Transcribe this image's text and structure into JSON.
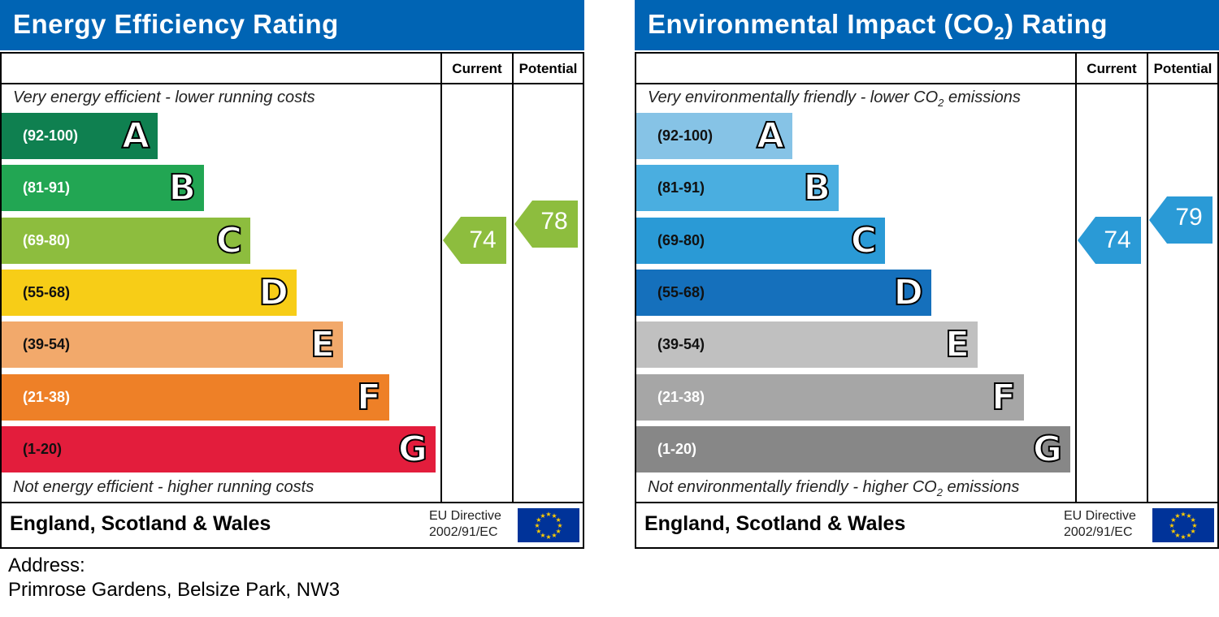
{
  "chart_data": [
    {
      "type": "bar",
      "title": "Energy Efficiency Rating",
      "columns": [
        "Current",
        "Potential"
      ],
      "top_caption": "Very energy efficient - lower running costs",
      "bottom_caption": "Not energy efficient - higher running costs",
      "bands": [
        {
          "range": "(92-100)",
          "letter": "A",
          "color": "#0f8050"
        },
        {
          "range": "(81-91)",
          "letter": "B",
          "color": "#22a653"
        },
        {
          "range": "(69-80)",
          "letter": "C",
          "color": "#8dbd3e"
        },
        {
          "range": "(55-68)",
          "letter": "D",
          "color": "#f7cd17"
        },
        {
          "range": "(39-54)",
          "letter": "E",
          "color": "#f2a96b"
        },
        {
          "range": "(21-38)",
          "letter": "F",
          "color": "#ee8027"
        },
        {
          "range": "(1-20)",
          "letter": "G",
          "color": "#e31d3c"
        }
      ],
      "current": {
        "value": "74",
        "band": "C",
        "color": "#8dbd3e"
      },
      "potential": {
        "value": "78",
        "band": "C",
        "color": "#8dbd3e"
      },
      "footer": "England, Scotland & Wales",
      "directive": [
        "EU Directive",
        "2002/91/EC"
      ]
    },
    {
      "type": "bar",
      "title_parts": [
        "Environmental Impact (CO",
        "2",
        ") Rating"
      ],
      "columns": [
        "Current",
        "Potential"
      ],
      "top_caption_parts": [
        "Very environmentally friendly - lower CO",
        "2",
        " emissions"
      ],
      "bottom_caption_parts": [
        "Not environmentally friendly - higher CO",
        "2",
        " emissions"
      ],
      "bands": [
        {
          "range": "(92-100)",
          "letter": "A",
          "color": "#86c3e6"
        },
        {
          "range": "(81-91)",
          "letter": "B",
          "color": "#4aaee0"
        },
        {
          "range": "(69-80)",
          "letter": "C",
          "color": "#2a9ad6"
        },
        {
          "range": "(55-68)",
          "letter": "D",
          "color": "#1570bc"
        },
        {
          "range": "(39-54)",
          "letter": "E",
          "color": "#c0c0c0"
        },
        {
          "range": "(21-38)",
          "letter": "F",
          "color": "#a6a6a6"
        },
        {
          "range": "(1-20)",
          "letter": "G",
          "color": "#878787"
        }
      ],
      "current": {
        "value": "74",
        "band": "C",
        "color": "#2a9ad6"
      },
      "potential": {
        "value": "79",
        "band": "C",
        "color": "#2a9ad6"
      },
      "footer": "England, Scotland & Wales",
      "directive": [
        "EU Directive",
        "2002/91/EC"
      ]
    }
  ],
  "address": {
    "label": "Address:",
    "value": "Primrose Gardens, Belsize Park, NW3"
  },
  "eu_flag": {
    "icon": "eu-flag-icon",
    "blue": "#003399",
    "star": "#ffcc00"
  }
}
